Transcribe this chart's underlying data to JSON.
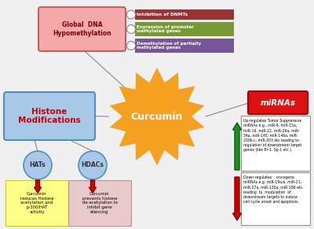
{
  "curcumin_label": "Curcumin",
  "curcumin_color": "#F5A020",
  "global_dna_label": "Global  DNA\nHypomethylation",
  "global_dna_color": "#F4A8A8",
  "global_dna_border": "#C06060",
  "histone_label": "Histone\nModifications",
  "histone_color": "#A8C8E8",
  "histone_border": "#5090C0",
  "mirna_label": "miRNAs",
  "mirna_color": "#DD1111",
  "mirna_border": "#AA0000",
  "hats_label": "HATs",
  "hats_color": "#A8C8E8",
  "hats_border": "#5090C0",
  "hdacs_label": "HDACs",
  "hdacs_color": "#A8C8E8",
  "hdacs_border": "#5090C0",
  "hat_box_label": "Curcumin\nreduces Histone\nacetylation and\np-300/HAT\nactivity",
  "hat_box_color": "#FFFF88",
  "hat_box_border": "#CCCC00",
  "hdac_box_label": "Curcumin\nprevents histone\nde-acetylation to\ninhibit gene\nsilencing",
  "hdac_box_color": "#E8C8C8",
  "hdac_box_border": "#C09090",
  "dnmt_label": "Inhibition of DNMTs",
  "dnmt_color": "#993333",
  "promoter_label": "Expression of promoter\nmethylated genes",
  "promoter_color": "#779933",
  "demethyl_label": "Demethylation of partially\nmethylated genes",
  "demethyl_color": "#775599",
  "up_mirna_text": "Up-regulates Tumor Suppressive\nmiRNAs e.g., miR-9, miR-15a,\nmiR-16, miR-22, miR-26a, miR-\n34a, miR-145, miR-146a, miR-\n200b,c, miR-203 etc leading to\nregulation of downstream target\ngenes (like Er-1, Sp-1 etc )",
  "down_mirna_text": "Down-regulates    oncogenic\nmiRNAs e.g. miR-19a,b, miR-21,\nmiR-27a, miR-130a, miR-186 etc.\nleading  to  modulation  of\ndownstream targets to induce\ncell cycle arrest and apoptosis.",
  "bg_color": "#F0F0F0",
  "circle_color": "#FFFFFF",
  "circle_border": "#888888",
  "line_color": "#888888",
  "arrow_red": "#CC0000",
  "arrow_green": "#228B22",
  "text_red": "#CC0000"
}
